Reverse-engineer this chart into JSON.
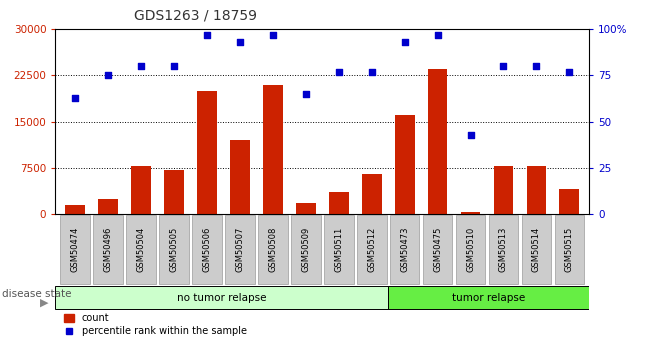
{
  "title": "GDS1263 / 18759",
  "samples": [
    "GSM50474",
    "GSM50496",
    "GSM50504",
    "GSM50505",
    "GSM50506",
    "GSM50507",
    "GSM50508",
    "GSM50509",
    "GSM50511",
    "GSM50512",
    "GSM50473",
    "GSM50475",
    "GSM50510",
    "GSM50513",
    "GSM50514",
    "GSM50515"
  ],
  "counts": [
    1500,
    2500,
    7800,
    7200,
    20000,
    12000,
    21000,
    1800,
    3500,
    6500,
    16000,
    23500,
    300,
    7800,
    7800,
    4000
  ],
  "percentiles": [
    63,
    75,
    80,
    80,
    97,
    93,
    97,
    65,
    77,
    77,
    93,
    97,
    43,
    80,
    80,
    77
  ],
  "no_tumor_count": 10,
  "tumor_count": 6,
  "ylim_left": [
    0,
    30000
  ],
  "ylim_right": [
    0,
    100
  ],
  "yticks_left": [
    0,
    7500,
    15000,
    22500,
    30000
  ],
  "yticks_right": [
    0,
    25,
    50,
    75,
    100
  ],
  "bar_color": "#cc2200",
  "dot_color": "#0000cc",
  "no_tumor_color": "#ccffcc",
  "tumor_color": "#66ee44",
  "xlabel_bg": "#cccccc",
  "title_color": "#333333",
  "fig_bg": "#ffffff"
}
